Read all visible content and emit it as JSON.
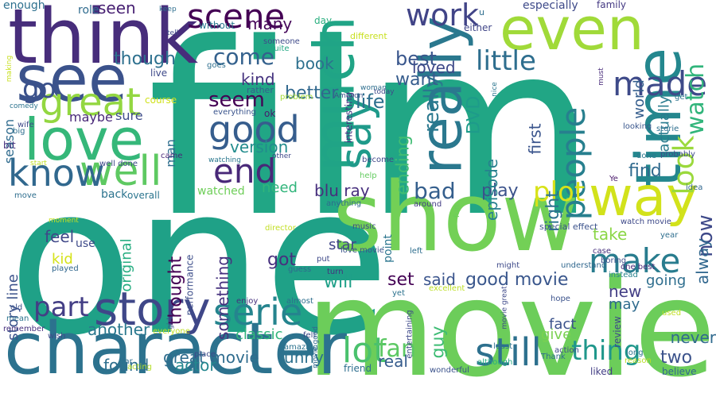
{
  "words": [
    {
      "text": "film",
      "color": "#21a685"
    },
    {
      "text": "one",
      "color": "#1fa187"
    },
    {
      "text": "movie",
      "color": "#6ccd5a"
    },
    {
      "text": "show",
      "color": "#73d056"
    },
    {
      "text": "character",
      "color": "#2c728e"
    },
    {
      "text": "think",
      "color": "#472d7b"
    },
    {
      "text": "see",
      "color": "#3b528b"
    },
    {
      "text": "love",
      "color": "#35b779"
    },
    {
      "text": "even",
      "color": "#a0da39"
    },
    {
      "text": "time",
      "color": "#24878e"
    },
    {
      "text": "much",
      "color": "#20a486"
    },
    {
      "text": "really",
      "color": "#2a788e"
    },
    {
      "text": "way",
      "color": "#d2e21b"
    },
    {
      "text": "story",
      "color": "#3f4788"
    },
    {
      "text": "well",
      "color": "#5ec962"
    },
    {
      "text": "know",
      "color": "#31688e"
    },
    {
      "text": "great",
      "color": "#93d741"
    },
    {
      "text": "good",
      "color": "#365d8d"
    },
    {
      "text": "scene",
      "color": "#440154"
    },
    {
      "text": "say",
      "color": "#1f9a8a"
    },
    {
      "text": "people",
      "color": "#277f8e"
    },
    {
      "text": "made",
      "color": "#3e4a89"
    },
    {
      "text": "make",
      "color": "#287c8e"
    },
    {
      "text": "end",
      "color": "#482878"
    },
    {
      "text": "serie",
      "color": "#25848e"
    },
    {
      "text": "still",
      "color": "#2d708e"
    },
    {
      "text": "look",
      "color": "#9bd93c"
    },
    {
      "text": "lot",
      "color": "#4ac16d"
    },
    {
      "text": "watch",
      "color": "#31b57b"
    },
    {
      "text": "work",
      "color": "#414487"
    },
    {
      "text": "little",
      "color": "#2e6e8e"
    },
    {
      "text": "go",
      "color": "#3b518b"
    },
    {
      "text": "part",
      "color": "#433e85"
    },
    {
      "text": "plot",
      "color": "#d8e219"
    },
    {
      "text": "thing",
      "color": "#1f978b"
    },
    {
      "text": "fan",
      "color": "#5cc863"
    },
    {
      "text": "seem",
      "color": "#440154"
    },
    {
      "text": "come",
      "color": "#34618d"
    },
    {
      "text": "bad",
      "color": "#355f8d"
    },
    {
      "text": "now",
      "color": "#3e4989"
    },
    {
      "text": "though",
      "color": "#2d708e"
    },
    {
      "text": "life",
      "color": "#2e6f8e"
    },
    {
      "text": "best",
      "color": "#39568c"
    },
    {
      "text": "better",
      "color": "#31688e"
    },
    {
      "text": "seen",
      "color": "#482173"
    },
    {
      "text": "many",
      "color": "#46075a"
    },
    {
      "text": "version",
      "color": "#228c8d"
    },
    {
      "text": "blu ray",
      "color": "#472f7d"
    },
    {
      "text": "really",
      "color": "#2a788e"
    },
    {
      "text": "play",
      "color": "#3b528b"
    },
    {
      "text": "episode",
      "color": "#27808e"
    },
    {
      "text": "DVD",
      "color": "#1e9b8a"
    },
    {
      "text": "first",
      "color": "#3a548c"
    },
    {
      "text": "right",
      "color": "#2c728e"
    },
    {
      "text": "find",
      "color": "#306a8e"
    },
    {
      "text": "want",
      "color": "#365c8d"
    },
    {
      "text": "ending",
      "color": "#3fbc73"
    },
    {
      "text": "book",
      "color": "#2d708e"
    },
    {
      "text": "loved",
      "color": "#3e4989"
    },
    {
      "text": "kind",
      "color": "#46337f"
    },
    {
      "text": "great movie",
      "color": "#2f6c8e"
    },
    {
      "text": "good movie",
      "color": "#39568c"
    },
    {
      "text": "actor",
      "color": "#24868e"
    },
    {
      "text": "funny",
      "color": "#2d718e"
    },
    {
      "text": "found",
      "color": "#2e6f8e"
    },
    {
      "text": "two",
      "color": "#3b528b"
    },
    {
      "text": "real",
      "color": "#365c8d"
    },
    {
      "text": "never",
      "color": "#306a8e"
    },
    {
      "text": "set",
      "color": "#440154"
    },
    {
      "text": "said",
      "color": "#3a548c"
    },
    {
      "text": "will",
      "color": "#1fa088"
    },
    {
      "text": "got",
      "color": "#46307e"
    },
    {
      "text": "feel",
      "color": "#3f4788"
    },
    {
      "text": "thought",
      "color": "#440154"
    },
    {
      "text": "original",
      "color": "#26ad81"
    },
    {
      "text": "something",
      "color": "#46327e"
    },
    {
      "text": "another",
      "color": "#2a788e"
    },
    {
      "text": "classic",
      "color": "#31b57b"
    },
    {
      "text": "star",
      "color": "#404588"
    },
    {
      "text": "take",
      "color": "#8bd646"
    },
    {
      "text": "may",
      "color": "#2f6b8e"
    },
    {
      "text": "new",
      "color": "#433e85"
    },
    {
      "text": "fact",
      "color": "#3b528b"
    },
    {
      "text": "give",
      "color": "#7ad151"
    },
    {
      "text": "guy",
      "color": "#3dbc74"
    },
    {
      "text": "going",
      "color": "#2e6e8e"
    },
    {
      "text": "alway",
      "color": "#31678e"
    },
    {
      "text": "world",
      "color": "#355e8d"
    },
    {
      "text": "actually",
      "color": "#297b8e"
    },
    {
      "text": "need",
      "color": "#31b57b"
    },
    {
      "text": "story line",
      "color": "#3b528b"
    },
    {
      "text": "kid",
      "color": "#d5e21a"
    },
    {
      "text": "man",
      "color": "#2e6e8e"
    },
    {
      "text": "maybe",
      "color": "#482878"
    },
    {
      "text": "sure",
      "color": "#3e4c8a"
    },
    {
      "text": "season",
      "color": "#2f6b8e"
    },
    {
      "text": "performance",
      "color": "#3d4e8a"
    },
    {
      "text": "watched",
      "color": "#6ece58"
    },
    {
      "text": "back",
      "color": "#2c738e"
    },
    {
      "text": "overall",
      "color": "#2b758e"
    },
    {
      "text": "role",
      "color": "#2f6b8e"
    },
    {
      "text": "enough",
      "color": "#2d708e"
    },
    {
      "text": "without",
      "color": "#2a788e"
    },
    {
      "text": "day",
      "color": "#29af7f"
    },
    {
      "text": "especially",
      "color": "#3e4a89"
    },
    {
      "text": "family",
      "color": "#443983"
    },
    {
      "text": "either",
      "color": "#404688"
    },
    {
      "text": "different",
      "color": "#c8e020"
    },
    {
      "text": "interesting",
      "color": "#453581"
    },
    {
      "text": "Amazon",
      "color": "#3b528b"
    },
    {
      "text": "woman",
      "color": "#2e6e8e"
    },
    {
      "text": "someone",
      "color": "#3e4a89"
    },
    {
      "text": "quite",
      "color": "#22a884"
    },
    {
      "text": "rather",
      "color": "#35608d"
    },
    {
      "text": "goes",
      "color": "#2e6f8e"
    },
    {
      "text": "live",
      "color": "#3e4989"
    },
    {
      "text": "course",
      "color": "#d0e11c"
    },
    {
      "text": "everything",
      "color": "#3a548c"
    },
    {
      "text": "ok",
      "color": "#481a6c"
    },
    {
      "text": "problem",
      "color": "#a5db36"
    },
    {
      "text": "today",
      "color": "#3e4a89"
    },
    {
      "text": "nice",
      "color": "#2b758e"
    },
    {
      "text": "must",
      "color": "#472a7a"
    },
    {
      "text": "get",
      "color": "#2c738e"
    },
    {
      "text": "looking",
      "color": "#39568c"
    },
    {
      "text": "storie",
      "color": "#2e6e8e"
    },
    {
      "text": "probably",
      "color": "#3e4a89"
    },
    {
      "text": "done",
      "color": "#2a788e"
    },
    {
      "text": "idea",
      "color": "#31678e"
    },
    {
      "text": "Ye",
      "color": "#48186a"
    },
    {
      "text": "special effect",
      "color": "#3b528b"
    },
    {
      "text": "watch movie",
      "color": "#3e4989"
    },
    {
      "text": "year",
      "color": "#2e6e8e"
    },
    {
      "text": "one best",
      "color": "#482878"
    },
    {
      "text": "case",
      "color": "#46307e"
    },
    {
      "text": "boring",
      "color": "#3d4e8a"
    },
    {
      "text": "instead",
      "color": "#26828e"
    },
    {
      "text": "understand",
      "color": "#31688e"
    },
    {
      "text": "hope",
      "color": "#3b528b"
    },
    {
      "text": "used",
      "color": "#c0df25"
    },
    {
      "text": "long",
      "color": "#2c738e"
    },
    {
      "text": "reason",
      "color": "#b8de29"
    },
    {
      "text": "review",
      "color": "#3e4989"
    },
    {
      "text": "believe",
      "color": "#31678e"
    },
    {
      "text": "liked",
      "color": "#433e85"
    },
    {
      "text": "wonderful",
      "color": "#3b528b"
    },
    {
      "text": "action",
      "color": "#3e4a89"
    },
    {
      "text": "least",
      "color": "#2c728e"
    },
    {
      "text": "Thank",
      "color": "#2e6e8e"
    },
    {
      "text": "although",
      "color": "#25ac82"
    },
    {
      "text": "movie great",
      "color": "#3e4989"
    },
    {
      "text": "might",
      "color": "#3e4a89"
    },
    {
      "text": "point",
      "color": "#2b758e"
    },
    {
      "text": "left",
      "color": "#2e6e8e"
    },
    {
      "text": "fun",
      "color": "#6ccd5a"
    },
    {
      "text": "around",
      "color": "#433e85"
    },
    {
      "text": "excellent",
      "color": "#bddf26"
    },
    {
      "text": "yet",
      "color": "#2c728e"
    },
    {
      "text": "music",
      "color": "#3e4a89"
    },
    {
      "text": "turn",
      "color": "#46327e"
    },
    {
      "text": "love movie",
      "color": "#3b528b"
    },
    {
      "text": "director",
      "color": "#c2df23"
    },
    {
      "text": "anything",
      "color": "#2f6b8e"
    },
    {
      "text": "become",
      "color": "#3e4989"
    },
    {
      "text": "help",
      "color": "#63cb5f"
    },
    {
      "text": "well done",
      "color": "#3e4a89"
    },
    {
      "text": "came",
      "color": "#482878"
    },
    {
      "text": "move",
      "color": "#2e6e8e"
    },
    {
      "text": "moment",
      "color": "#c8e020"
    },
    {
      "text": "use",
      "color": "#3e4a89"
    },
    {
      "text": "played",
      "color": "#31678e"
    },
    {
      "text": "old",
      "color": "#3b528b"
    },
    {
      "text": "mean",
      "color": "#2c738e"
    },
    {
      "text": "remember",
      "color": "#46307e"
    },
    {
      "text": "wish",
      "color": "#3e4989"
    },
    {
      "text": "far",
      "color": "#2e6e8e"
    },
    {
      "text": "acting",
      "color": "#b5de2b"
    },
    {
      "text": "everyone",
      "color": "#c0df25"
    },
    {
      "text": "girl",
      "color": "#3e4a89"
    },
    {
      "text": "enjoy",
      "color": "#46307e"
    },
    {
      "text": "almost",
      "color": "#2e6e8e"
    },
    {
      "text": "guess",
      "color": "#2f6b8e"
    },
    {
      "text": "put",
      "color": "#3e4989"
    },
    {
      "text": "felt",
      "color": "#3e4a89"
    },
    {
      "text": "amazing",
      "color": "#2c728e"
    },
    {
      "text": "movie good",
      "color": "#31678e"
    },
    {
      "text": "entertaining",
      "color": "#3e4989"
    },
    {
      "text": "friend",
      "color": "#2e6e8e"
    },
    {
      "text": "place",
      "color": "#3e4a89"
    },
    {
      "text": "wife",
      "color": "#3e4989"
    },
    {
      "text": "big",
      "color": "#2e6e8e"
    },
    {
      "text": "bit",
      "color": "#46307e"
    },
    {
      "text": "comedy",
      "color": "#2c738e"
    },
    {
      "text": "making",
      "color": "#c8e020"
    },
    {
      "text": "start",
      "color": "#c0df25"
    },
    {
      "text": "keep",
      "color": "#2e6e8e"
    },
    {
      "text": "tell",
      "color": "#3e4a89"
    },
    {
      "text": "u",
      "color": "#2e6e8e"
    },
    {
      "text": "other",
      "color": "#3e4989"
    },
    {
      "text": "watching",
      "color": "#2a788e"
    }
  ]
}
